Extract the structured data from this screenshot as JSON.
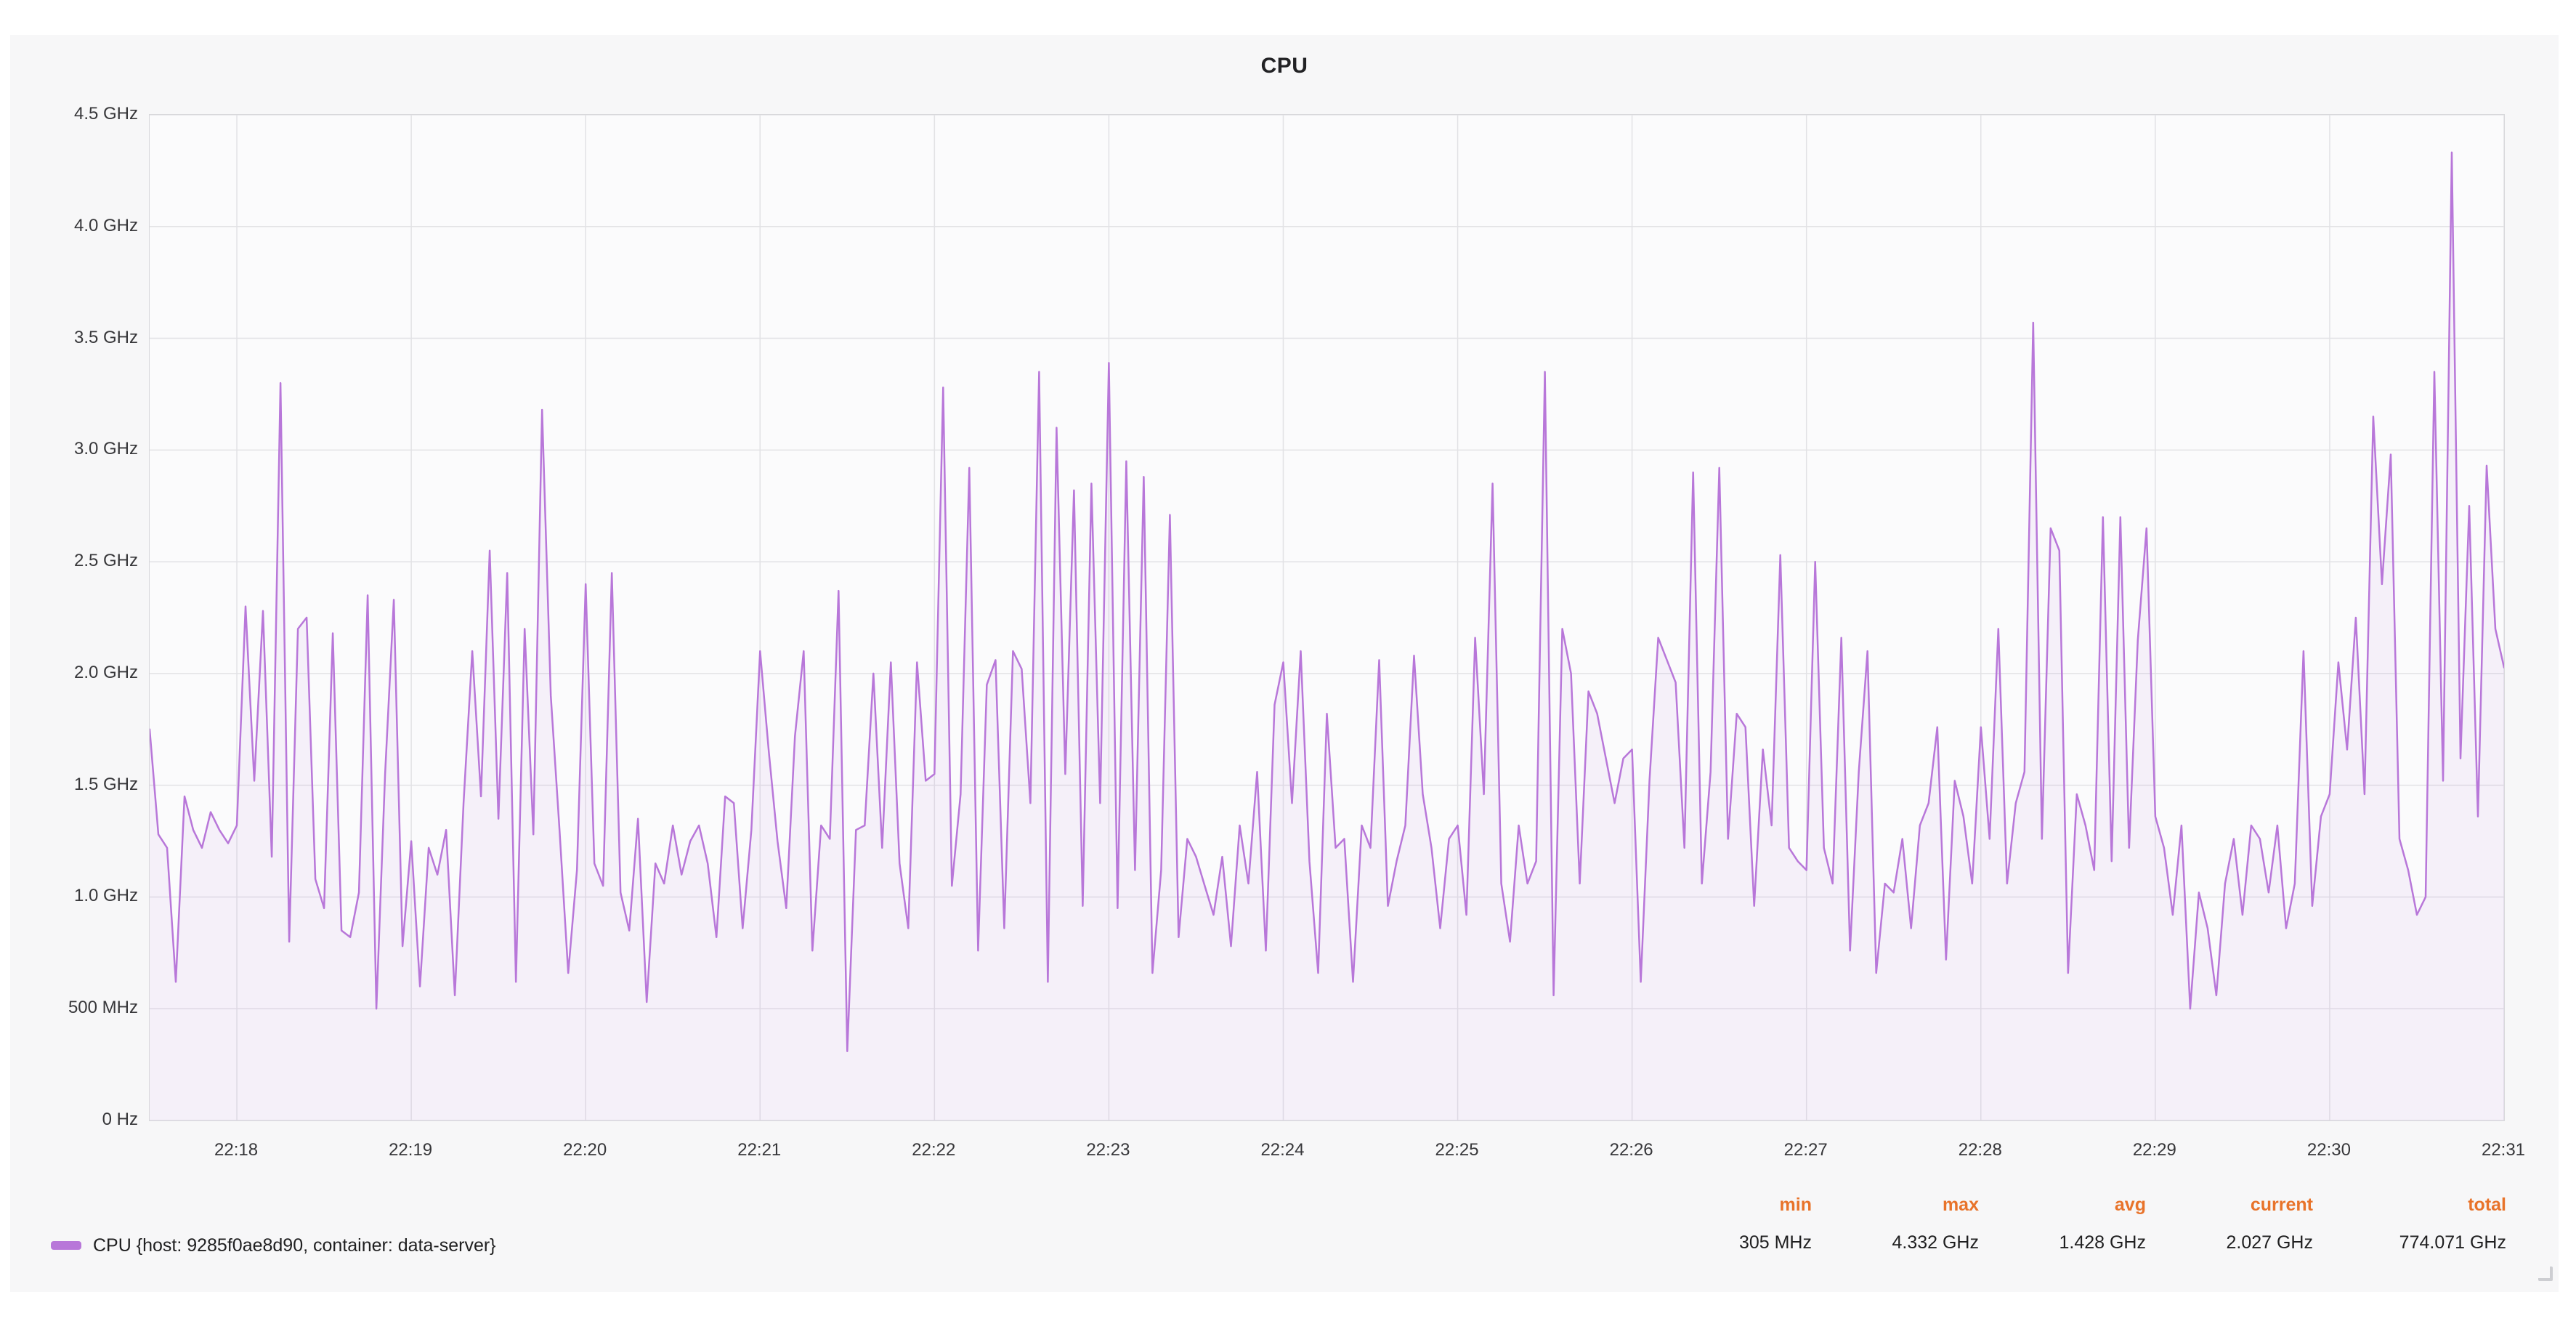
{
  "panel": {
    "title": "CPU"
  },
  "colors": {
    "series": "#b877d9",
    "series_fill": "rgba(184,119,217,0.08)",
    "grid": "#e2e2e5",
    "plot_border": "#d8d8db",
    "panel_bg": "#f7f7f8",
    "plot_bg": "#fbfbfc",
    "stat_header": "#e8732a"
  },
  "legend": {
    "series_label": "CPU {host: 9285f0ae8d90, container: data-server}",
    "stats": [
      {
        "label": "min",
        "value": "305 MHz"
      },
      {
        "label": "max",
        "value": "4.332 GHz"
      },
      {
        "label": "avg",
        "value": "1.428 GHz"
      },
      {
        "label": "current",
        "value": "2.027 GHz"
      },
      {
        "label": "total",
        "value": "774.071 GHz"
      }
    ]
  },
  "chart_data": {
    "type": "line",
    "title": "CPU",
    "xlabel": "",
    "ylabel": "",
    "legend_position": "bottom",
    "grid": true,
    "x_axis": {
      "tick_labels": [
        "22:18",
        "22:19",
        "22:20",
        "22:21",
        "22:22",
        "22:23",
        "22:24",
        "22:25",
        "22:26",
        "22:27",
        "22:28",
        "22:29",
        "22:30",
        "22:31"
      ],
      "tick_minutes": [
        18,
        19,
        20,
        21,
        22,
        23,
        24,
        25,
        26,
        27,
        28,
        29,
        30,
        31
      ],
      "domain_minutes": [
        17.5,
        31.0
      ]
    },
    "y_axis": {
      "tick_labels": [
        "0 Hz",
        "500 MHz",
        "1.0 GHz",
        "1.5 GHz",
        "2.0 GHz",
        "2.5 GHz",
        "3.0 GHz",
        "3.5 GHz",
        "4.0 GHz",
        "4.5 GHz"
      ],
      "tick_values_ghz": [
        0,
        0.5,
        1.0,
        1.5,
        2.0,
        2.5,
        3.0,
        3.5,
        4.0,
        4.5
      ],
      "range_ghz": [
        0,
        4.5
      ]
    },
    "series": [
      {
        "name": "CPU {host: 9285f0ae8d90, container: data-server}",
        "color": "#b877d9",
        "unit": "GHz",
        "stats": {
          "min": "305 MHz",
          "max": "4.332 GHz",
          "avg": "1.428 GHz",
          "current": "2.027 GHz",
          "total": "774.071 GHz"
        },
        "values_ghz": [
          1.75,
          1.28,
          1.22,
          0.62,
          1.45,
          1.3,
          1.22,
          1.38,
          1.3,
          1.24,
          1.32,
          2.3,
          1.52,
          2.28,
          1.18,
          3.3,
          0.8,
          2.2,
          2.25,
          1.08,
          0.95,
          2.18,
          0.85,
          0.82,
          1.02,
          2.35,
          0.5,
          1.55,
          2.33,
          0.78,
          1.25,
          0.6,
          1.22,
          1.1,
          1.3,
          0.56,
          1.42,
          2.1,
          1.45,
          2.55,
          1.35,
          2.45,
          0.62,
          2.2,
          1.28,
          3.18,
          1.9,
          1.3,
          0.66,
          1.12,
          2.4,
          1.15,
          1.05,
          2.45,
          1.02,
          0.85,
          1.35,
          0.53,
          1.15,
          1.06,
          1.32,
          1.1,
          1.25,
          1.32,
          1.15,
          0.82,
          1.45,
          1.42,
          0.86,
          1.3,
          2.1,
          1.65,
          1.25,
          0.95,
          1.72,
          2.1,
          0.76,
          1.32,
          1.26,
          2.37,
          0.31,
          1.3,
          1.32,
          2.0,
          1.22,
          2.05,
          1.15,
          0.86,
          2.05,
          1.52,
          1.55,
          3.28,
          1.05,
          1.46,
          2.92,
          0.76,
          1.95,
          2.06,
          0.86,
          2.1,
          2.02,
          1.42,
          3.35,
          0.62,
          3.1,
          1.55,
          2.82,
          0.96,
          2.85,
          1.42,
          3.39,
          0.95,
          2.95,
          1.12,
          2.88,
          0.66,
          1.12,
          2.71,
          0.82,
          1.26,
          1.18,
          1.05,
          0.92,
          1.18,
          0.78,
          1.32,
          1.06,
          1.56,
          0.76,
          1.86,
          2.05,
          1.42,
          2.1,
          1.16,
          0.66,
          1.82,
          1.22,
          1.26,
          0.62,
          1.32,
          1.22,
          2.06,
          0.96,
          1.16,
          1.32,
          2.08,
          1.46,
          1.22,
          0.86,
          1.26,
          1.32,
          0.92,
          2.16,
          1.46,
          2.85,
          1.06,
          0.8,
          1.32,
          1.06,
          1.16,
          3.35,
          0.56,
          2.2,
          2.0,
          1.06,
          1.92,
          1.82,
          1.62,
          1.42,
          1.62,
          1.66,
          0.62,
          1.52,
          2.16,
          2.06,
          1.96,
          1.22,
          2.9,
          1.06,
          1.56,
          2.92,
          1.26,
          1.82,
          1.76,
          0.96,
          1.66,
          1.32,
          2.53,
          1.22,
          1.16,
          1.12,
          2.5,
          1.22,
          1.06,
          2.16,
          0.76,
          1.56,
          2.1,
          0.66,
          1.06,
          1.02,
          1.26,
          0.86,
          1.32,
          1.42,
          1.76,
          0.72,
          1.52,
          1.36,
          1.06,
          1.76,
          1.26,
          2.2,
          1.06,
          1.42,
          1.56,
          3.57,
          1.26,
          2.65,
          2.55,
          0.66,
          1.46,
          1.32,
          1.12,
          2.7,
          1.16,
          2.7,
          1.22,
          2.15,
          2.65,
          1.36,
          1.22,
          0.92,
          1.32,
          0.5,
          1.02,
          0.86,
          0.56,
          1.06,
          1.26,
          0.92,
          1.32,
          1.26,
          1.02,
          1.32,
          0.86,
          1.06,
          2.1,
          0.96,
          1.36,
          1.46,
          2.05,
          1.66,
          2.25,
          1.46,
          3.15,
          2.4,
          2.98,
          1.26,
          1.12,
          0.92,
          1.0,
          3.35,
          1.52,
          4.332,
          1.62,
          2.75,
          1.36,
          2.93,
          2.2,
          2.027
        ]
      }
    ]
  }
}
